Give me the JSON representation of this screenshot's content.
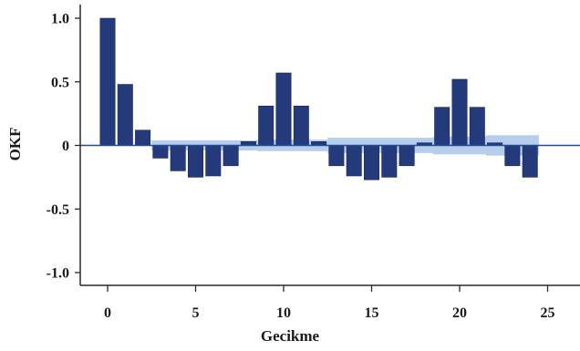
{
  "chart_data": {
    "type": "bar",
    "title": "",
    "xlabel": "Gecikme",
    "ylabel": "OKF",
    "xlim": [
      -2.5,
      26.5
    ],
    "ylim": [
      -1.1,
      1.1
    ],
    "x_ticks": [
      0,
      5,
      10,
      15,
      20,
      25
    ],
    "x_tick_labels": [
      "0",
      "5",
      "10",
      "15",
      "20",
      "25"
    ],
    "y_ticks": [
      1.0,
      0.5,
      0,
      -0.5,
      -1.0
    ],
    "y_tick_labels": [
      "1.0",
      "0.5",
      "0",
      "-0.5",
      "-1.0"
    ],
    "grid": false,
    "lags": [
      0,
      1,
      2,
      3,
      4,
      5,
      6,
      7,
      8,
      9,
      10,
      11,
      12,
      13,
      14,
      15,
      16,
      17,
      18,
      19,
      20,
      21,
      22,
      23,
      24
    ],
    "values": [
      1.0,
      0.48,
      0.12,
      -0.1,
      -0.2,
      -0.25,
      -0.24,
      -0.16,
      0.03,
      0.31,
      0.57,
      0.31,
      0.03,
      -0.16,
      -0.24,
      -0.27,
      -0.25,
      -0.16,
      0.02,
      0.3,
      0.52,
      0.3,
      0.02,
      -0.16,
      -0.25
    ],
    "confidence_band": {
      "lags": [
        2.5,
        8.5,
        12.5,
        18.5,
        21.5,
        24.5
      ],
      "upper": [
        0.04,
        0.045,
        0.06,
        0.07,
        0.08,
        0.08
      ],
      "lower": [
        -0.04,
        -0.045,
        -0.06,
        -0.07,
        -0.08,
        -0.08
      ]
    },
    "colors": {
      "bar": "#243a7a",
      "bar_edge": "#1a2a5e",
      "band": "#a9c4e8",
      "zero_line": "#1f4e9c",
      "axis": "#2a2a2a"
    }
  }
}
